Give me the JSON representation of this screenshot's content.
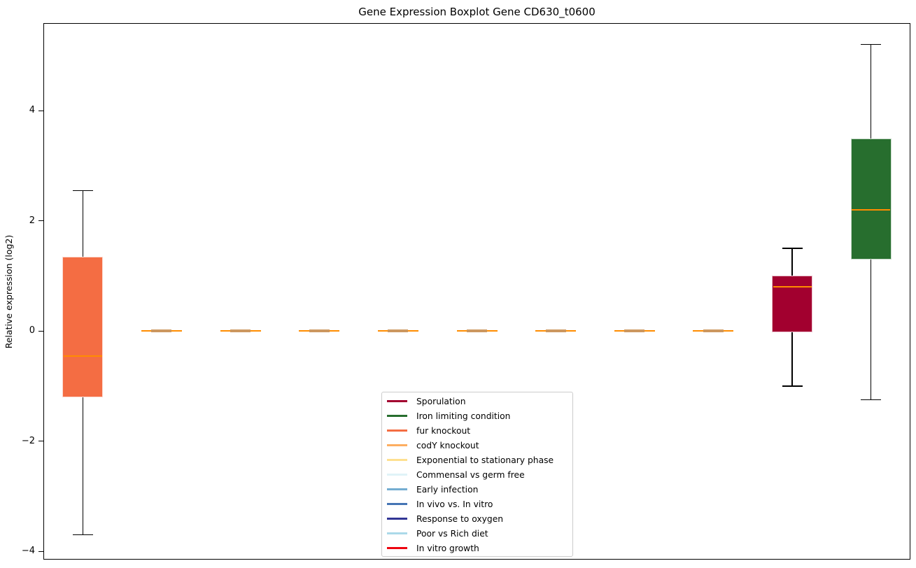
{
  "chart_data": {
    "type": "boxplot",
    "title": "Gene Expression Boxplot Gene CD630_t0600",
    "ylabel": "Relative expression (log2)",
    "ylim": [
      -4.15,
      5.59
    ],
    "grid": false,
    "yticks": [
      {
        "label": "4",
        "value": 4
      },
      {
        "label": "2",
        "value": 2
      },
      {
        "label": "0",
        "value": 0
      },
      {
        "label": "−2",
        "value": -2
      },
      {
        "label": "−4",
        "value": -4
      }
    ],
    "median_color": "#ff8c00",
    "whisker_color": "#000000",
    "flat_center_color": "#cc9760",
    "boxes": [
      {
        "label": "fur knockout",
        "color": "#f46d43",
        "whisker_low": -3.7,
        "q1": -1.2,
        "median": -0.45,
        "q3": 1.35,
        "whisker_high": 2.55
      },
      {
        "label": "codY knockout",
        "color": "#fdae61",
        "whisker_low": 0,
        "q1": 0,
        "median": 0,
        "q3": 0,
        "whisker_high": 0
      },
      {
        "label": "Exponential to stationary phase",
        "color": "#fee090",
        "whisker_low": 0,
        "q1": 0,
        "median": 0,
        "q3": 0,
        "whisker_high": 0
      },
      {
        "label": "Commensal vs germ free",
        "color": "#e0f3f8",
        "whisker_low": 0,
        "q1": 0,
        "median": 0,
        "q3": 0,
        "whisker_high": 0
      },
      {
        "label": "Early infection",
        "color": "#74add1",
        "whisker_low": 0,
        "q1": 0,
        "median": 0,
        "q3": 0,
        "whisker_high": 0
      },
      {
        "label": "In vivo vs. In vitro",
        "color": "#4575b4",
        "whisker_low": 0,
        "q1": 0,
        "median": 0,
        "q3": 0,
        "whisker_high": 0
      },
      {
        "label": "Response to oxygen",
        "color": "#313695",
        "whisker_low": 0,
        "q1": 0,
        "median": 0,
        "q3": 0,
        "whisker_high": 0
      },
      {
        "label": "Poor vs Rich diet",
        "color": "#abd9e9",
        "whisker_low": 0,
        "q1": 0,
        "median": 0,
        "q3": 0,
        "whisker_high": 0
      },
      {
        "label": "In vitro growth",
        "color": "#ed0510",
        "whisker_low": 0,
        "q1": 0,
        "median": 0,
        "q3": 0,
        "whisker_high": 0
      },
      {
        "label": "Sporulation",
        "color": "#a2002f",
        "whisker_low": -1.0,
        "q1": -0.02,
        "median": 0.8,
        "q3": 1.0,
        "whisker_high": 1.5
      },
      {
        "label": "Iron limiting condition",
        "color": "#276e2e",
        "whisker_low": -1.25,
        "q1": 1.3,
        "median": 2.2,
        "q3": 3.5,
        "whisker_high": 5.2
      }
    ],
    "legend": {
      "position": "bottom-center",
      "entries": [
        {
          "label": "Sporulation",
          "color": "#a2002f"
        },
        {
          "label": "Iron limiting condition",
          "color": "#276e2e"
        },
        {
          "label": "fur knockout",
          "color": "#f46d43"
        },
        {
          "label": "codY knockout",
          "color": "#fdae61"
        },
        {
          "label": "Exponential to stationary phase",
          "color": "#fee090"
        },
        {
          "label": "Commensal vs germ free",
          "color": "#e0f3f8"
        },
        {
          "label": "Early infection",
          "color": "#74add1"
        },
        {
          "label": "In vivo vs. In vitro",
          "color": "#4575b4"
        },
        {
          "label": "Response to oxygen",
          "color": "#313695"
        },
        {
          "label": "Poor vs Rich diet",
          "color": "#abd9e9"
        },
        {
          "label": "In vitro growth",
          "color": "#ed0510"
        }
      ]
    }
  }
}
